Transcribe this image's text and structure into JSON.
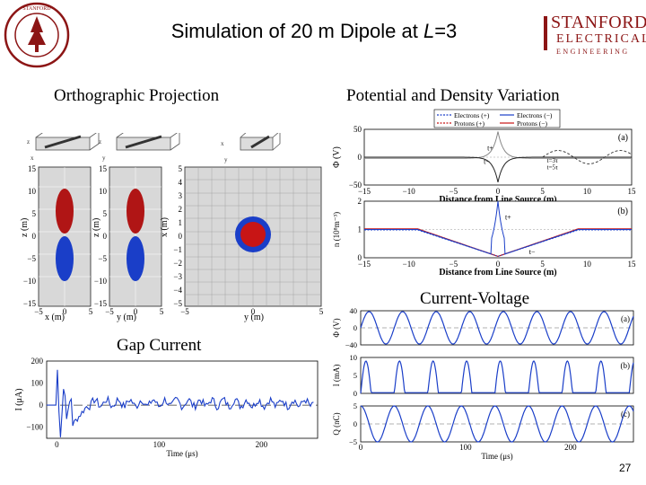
{
  "slide": {
    "title_main": "Simulation of 20 m Dipole at ",
    "title_var": "L",
    "title_rest": "=3",
    "page_number": "27"
  },
  "logos": {
    "stanford_seal_text": "LELAND STANFORD JUNIOR UNIVERSITY",
    "stanford_line1": "STANFORD",
    "stanford_line2": "ELECTRICAL",
    "stanford_line3": "ENGINEERING",
    "accent": "#8c1515"
  },
  "sections": {
    "ortho": "Orthographic Projection",
    "potential": "Potential and Density Variation",
    "iv": "Current-Voltage",
    "gap": "Gap Current"
  },
  "ortho": {
    "z_ticks": [
      "15",
      "10",
      "5",
      "0",
      "−5",
      "−10",
      "−15"
    ],
    "x_ticks": [
      "5",
      "4",
      "3",
      "2",
      "1",
      "0",
      "−1",
      "−2",
      "−3",
      "−4",
      "−5"
    ],
    "bottom_ticks": [
      "−5",
      "0",
      "5"
    ],
    "xlabel1": "x (m)",
    "xlabel2": "y (m)",
    "xlabel3": "y (m)",
    "ylabel1": "z (m)",
    "ylabel2": "z (m)",
    "ylabel3": "x (m)"
  },
  "chart_data": [
    {
      "id": "potential",
      "type": "line",
      "title": "(a)",
      "xlabel": "Distance from Line Source (m)",
      "ylabel": "Φ (V)",
      "xlim": [
        -15,
        15
      ],
      "ylim": [
        -50,
        50
      ],
      "x_ticks": [
        "−15",
        "−10",
        "−5",
        "0",
        "5",
        "10",
        "15"
      ],
      "y_ticks": [
        "50",
        "0",
        "−50"
      ],
      "legend": [
        "Electrons (+)",
        "Protons (+)",
        "Electrons (−)",
        "Protons (−)"
      ],
      "annotations": [
        "t+",
        "t−",
        "t=3τ",
        "t=5τ"
      ]
    },
    {
      "id": "density",
      "type": "line",
      "title": "(b)",
      "xlabel": "Distance from Line Source (m)",
      "ylabel": "n (10⁸m⁻³)",
      "xlim": [
        -15,
        15
      ],
      "ylim": [
        0,
        2
      ],
      "x_ticks": [
        "−15",
        "−10",
        "−5",
        "0",
        "5",
        "10",
        "15"
      ],
      "y_ticks": [
        "2",
        "1",
        "0"
      ],
      "annotations": [
        "t+",
        "t−"
      ]
    },
    {
      "id": "iv",
      "type": "line",
      "panels": [
        {
          "label": "(a)",
          "ylabel": "Φ (V)",
          "y_ticks": [
            "40",
            "0",
            "−40"
          ],
          "ylim": [
            -40,
            40
          ]
        },
        {
          "label": "(b)",
          "ylabel": "I (mA)",
          "y_ticks": [
            "10",
            "5",
            "0"
          ],
          "ylim": [
            0,
            10
          ]
        },
        {
          "label": "(c)",
          "ylabel": "Q (nC)",
          "y_ticks": [
            "5",
            "0",
            "−5"
          ],
          "ylim": [
            -5,
            5
          ]
        }
      ],
      "x_ticks": [
        "0",
        "100",
        "200"
      ],
      "xlim": [
        0,
        260
      ],
      "xlabel": "Time (μs)"
    },
    {
      "id": "gap",
      "type": "line",
      "xlabel": "Time (μs)",
      "ylabel": "I (μA)",
      "x_ticks": [
        "0",
        "100",
        "200"
      ],
      "y_ticks": [
        "200",
        "100",
        "0",
        "−100"
      ],
      "xlim": [
        -10,
        255
      ],
      "ylim": [
        -150,
        200
      ]
    }
  ]
}
